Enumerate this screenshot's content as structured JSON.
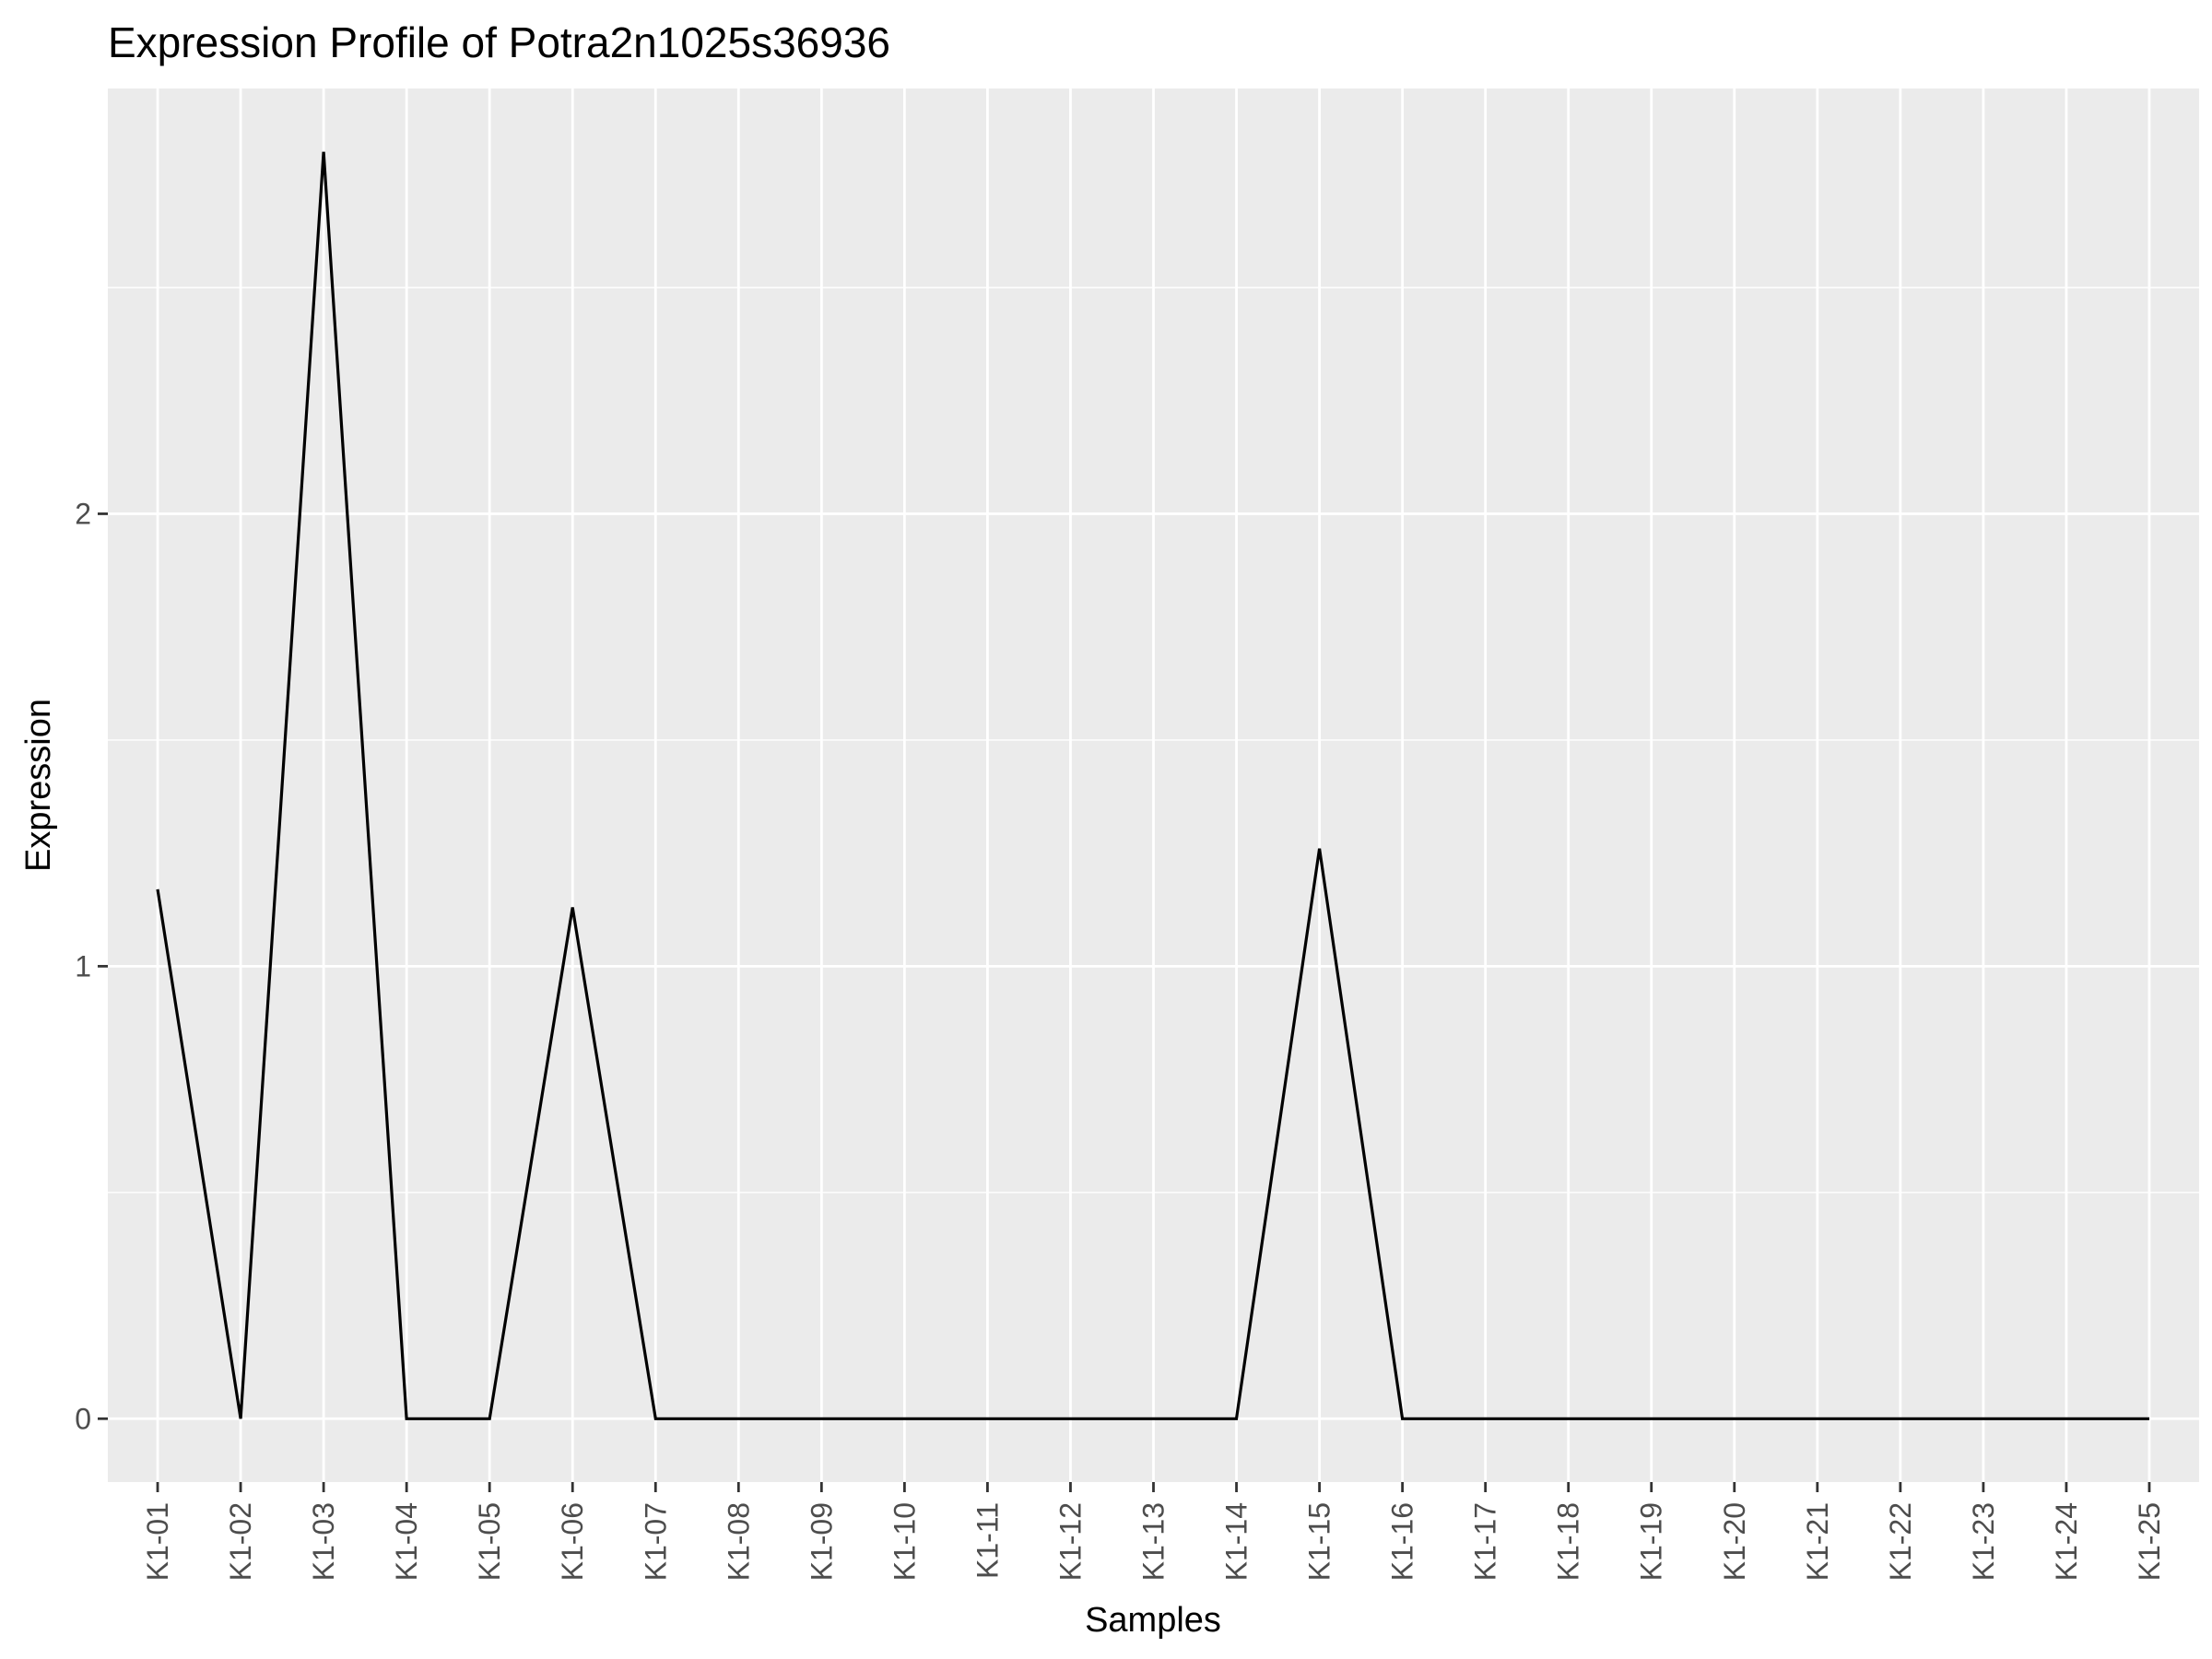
{
  "chart_data": {
    "type": "line",
    "title": "Expression Profile of Potra2n1025s36936",
    "xlabel": "Samples",
    "ylabel": "Expression",
    "categories": [
      "K1-01",
      "K1-02",
      "K1-03",
      "K1-04",
      "K1-05",
      "K1-06",
      "K1-07",
      "K1-08",
      "K1-09",
      "K1-10",
      "K1-11",
      "K1-12",
      "K1-13",
      "K1-14",
      "K1-15",
      "K1-16",
      "K1-17",
      "K1-18",
      "K1-19",
      "K1-20",
      "K1-21",
      "K1-22",
      "K1-23",
      "K1-24",
      "K1-25"
    ],
    "values": [
      1.17,
      0,
      2.8,
      0,
      0,
      1.13,
      0,
      0,
      0,
      0,
      0,
      0,
      0,
      0,
      1.26,
      0,
      0,
      0,
      0,
      0,
      0,
      0,
      0,
      0,
      0
    ],
    "ylim": [
      -0.14,
      2.94
    ],
    "yticks": [
      0,
      1,
      2
    ],
    "grid": true,
    "colors": {
      "panel": "#ebebeb",
      "grid": "#ffffff",
      "line": "#000000",
      "tick": "#333333"
    }
  }
}
